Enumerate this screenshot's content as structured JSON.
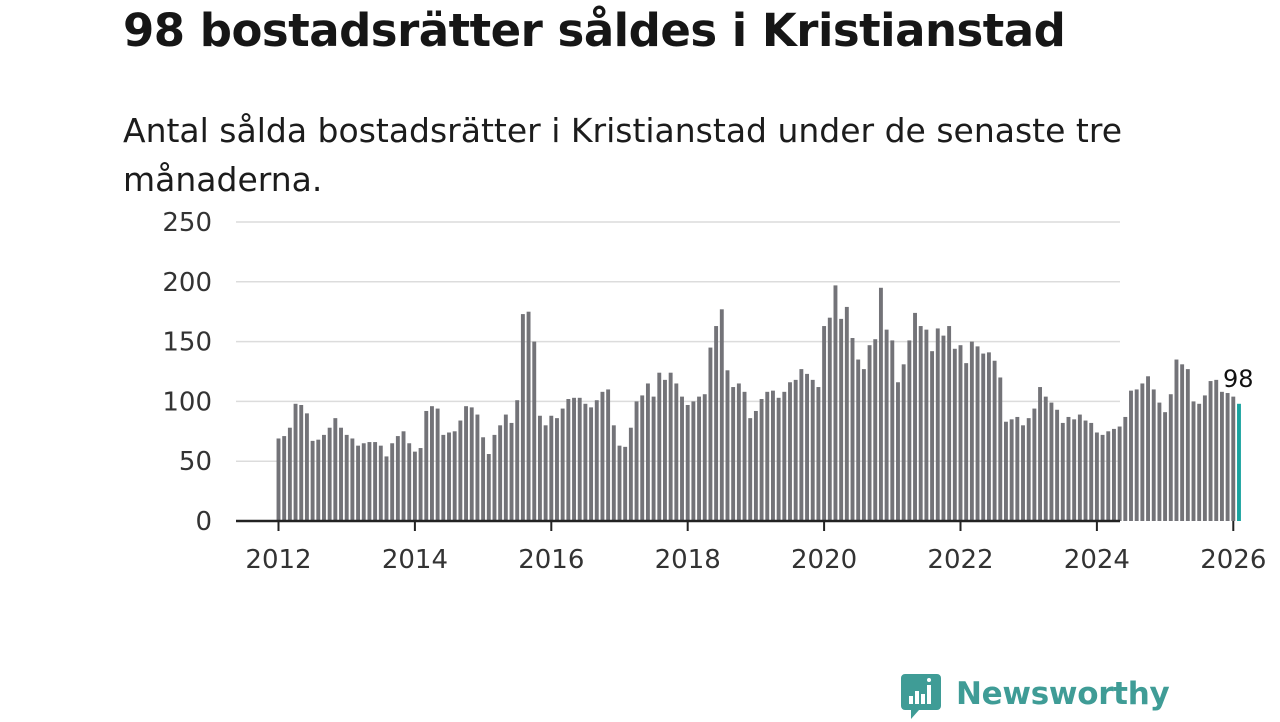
{
  "title": "98 bostadsrätter såldes i Kristianstad",
  "subtitle": "Antal sålda bostadsrätter i Kristianstad under de senaste tre månaderna.",
  "brand": "Newsworthy",
  "colors": {
    "bar": "#737378",
    "highlight": "#1aa3a0",
    "grid": "#dcdcdc",
    "axis": "#222222",
    "brand": "#3f9c96"
  },
  "chart_data": {
    "type": "bar",
    "title": "98 bostadsrätter såldes i Kristianstad",
    "xlabel": "",
    "ylabel": "",
    "ylim": [
      0,
      250
    ],
    "yticks": [
      0,
      50,
      100,
      150,
      200,
      250
    ],
    "xticks": [
      2012,
      2014,
      2016,
      2018,
      2020,
      2022,
      2024,
      2026
    ],
    "start": "2012-01",
    "end": "2026-02",
    "last_label": "98",
    "values": [
      69,
      71,
      78,
      98,
      97,
      90,
      67,
      68,
      72,
      78,
      86,
      78,
      72,
      69,
      63,
      65,
      66,
      66,
      63,
      54,
      65,
      71,
      75,
      65,
      58,
      61,
      92,
      96,
      94,
      72,
      74,
      75,
      84,
      96,
      95,
      89,
      70,
      56,
      72,
      80,
      89,
      82,
      101,
      173,
      175,
      150,
      88,
      80,
      88,
      86,
      94,
      102,
      103,
      103,
      98,
      95,
      101,
      108,
      110,
      80,
      63,
      62,
      78,
      100,
      105,
      115,
      104,
      124,
      118,
      124,
      115,
      104,
      97,
      100,
      104,
      106,
      145,
      163,
      177,
      126,
      112,
      115,
      108,
      86,
      92,
      102,
      108,
      109,
      103,
      108,
      116,
      118,
      127,
      123,
      118,
      112,
      163,
      170,
      197,
      169,
      179,
      153,
      135,
      127,
      147,
      152,
      195,
      160,
      151,
      116,
      131,
      151,
      174,
      163,
      160,
      142,
      161,
      155,
      163,
      144,
      147,
      132,
      150,
      146,
      140,
      141,
      134,
      120,
      83,
      85,
      87,
      80,
      86,
      94,
      112,
      104,
      99,
      93,
      82,
      87,
      85,
      89,
      84,
      82,
      74,
      72,
      75,
      77,
      79,
      87,
      109,
      110,
      115,
      121,
      110,
      99,
      91,
      106,
      135,
      131,
      127,
      100,
      98,
      105,
      117,
      118,
      108,
      107,
      104,
      98
    ]
  }
}
